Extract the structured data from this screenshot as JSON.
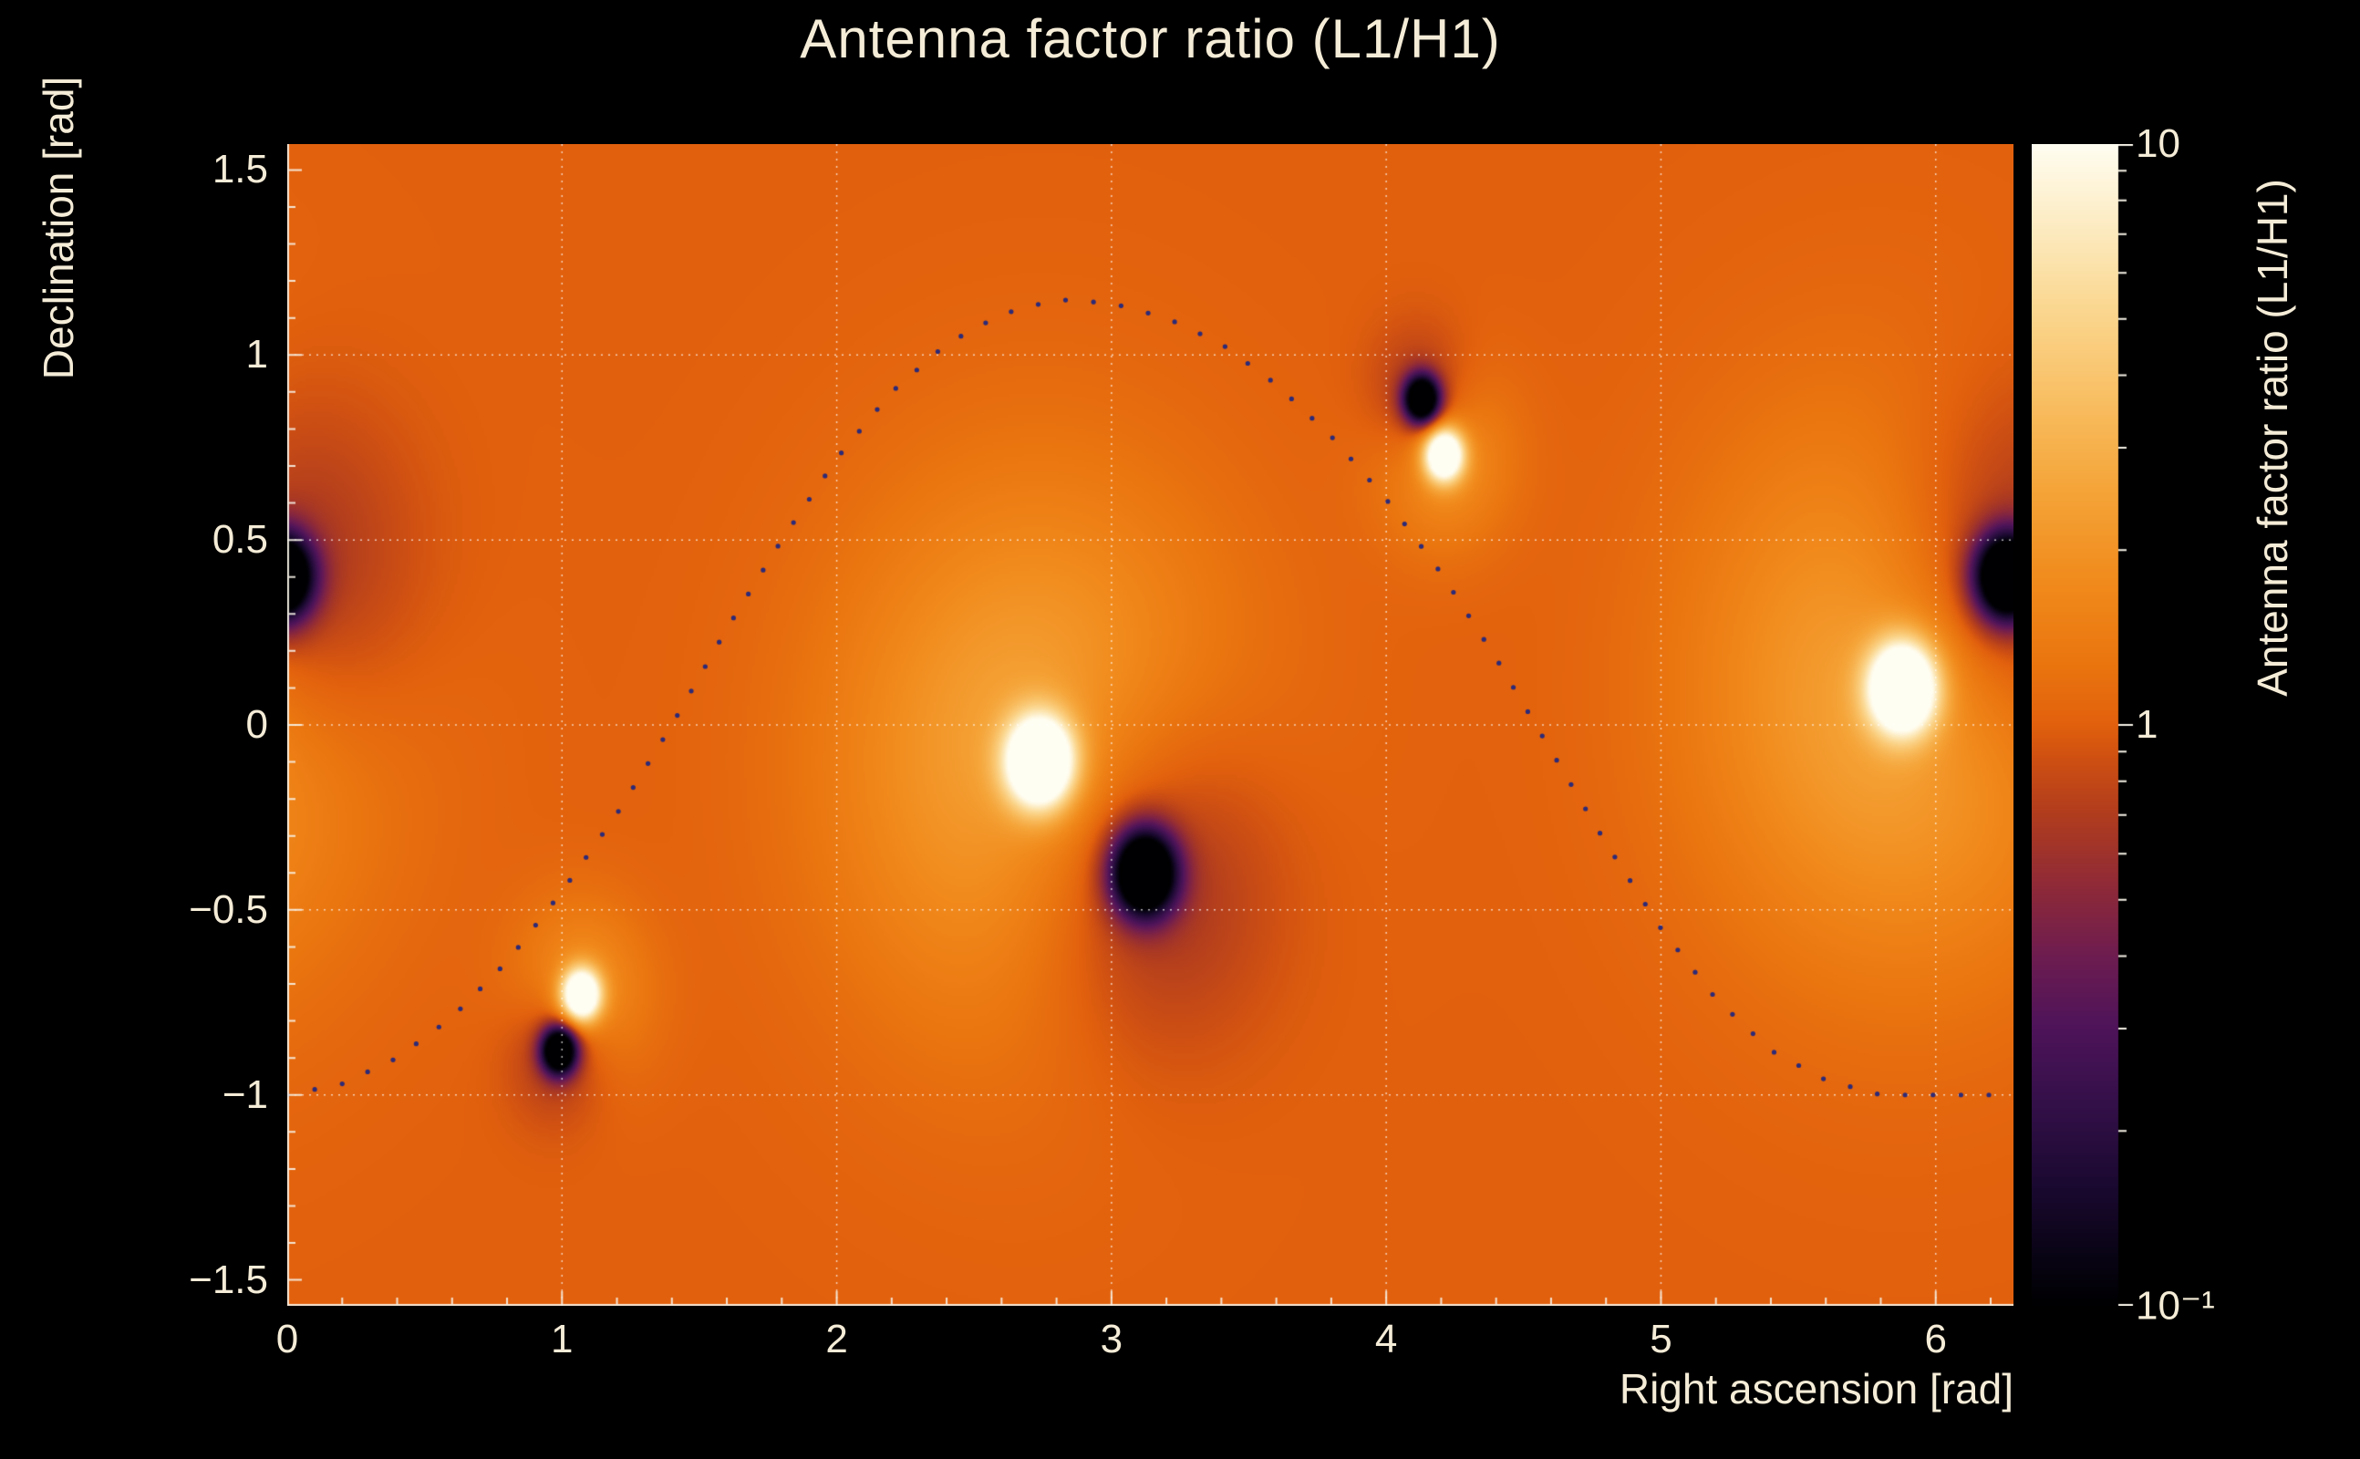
{
  "title": "Antenna factor ratio (L1/H1)",
  "style": {
    "background": "#000000",
    "text_color": "#f5ecd7",
    "tick_color": "#f7f3e8",
    "grid_color": "rgba(255,255,255,0.70)",
    "base_orange": "#e2610d",
    "track_dot_color": "#2d2a78"
  },
  "axes": {
    "x": {
      "title": "Right ascension [rad]",
      "range": [
        0,
        6.283
      ],
      "tick_values": [
        0,
        1,
        2,
        3,
        4,
        5,
        6
      ],
      "tick_labels": [
        "0",
        "1",
        "2",
        "3",
        "4",
        "5",
        "6"
      ],
      "grid_values": [
        1,
        2,
        3,
        4,
        5,
        6
      ],
      "minor_step": 0.2
    },
    "y": {
      "title": "Declination [rad]",
      "range": [
        -1.57,
        1.57
      ],
      "tick_values": [
        1.5,
        1,
        0.5,
        0,
        -0.5,
        -1,
        -1.5
      ],
      "tick_labels": [
        "1.5",
        "1",
        "0.5",
        "0",
        "−0.5",
        "−1",
        "−1.5"
      ],
      "grid_values": [
        -1,
        -0.5,
        0,
        0.5,
        1
      ],
      "minor_step": 0.1
    },
    "z": {
      "title": "Antenna factor ratio (L1/H1)",
      "scale": "log",
      "range": [
        0.1,
        10
      ],
      "tick_values": [
        10,
        1,
        0.1
      ],
      "tick_labels": [
        "10",
        "1",
        "10⁻¹"
      ],
      "minor_ticks": [
        9,
        8,
        7,
        6,
        5,
        4,
        3,
        2,
        0.9,
        0.8,
        0.7,
        0.6,
        0.5,
        0.4,
        0.3,
        0.2
      ]
    }
  },
  "chart_data": {
    "type": "heatmap",
    "title": "Antenna factor ratio (L1/H1)",
    "xlabel": "Right ascension [rad]",
    "ylabel": "Declination [rad]",
    "zlabel": "Antenna factor ratio (L1/H1)",
    "x_range": [
      0,
      6.283
    ],
    "y_range": [
      -1.57,
      1.57
    ],
    "z_scale": "log",
    "z_range": [
      0.1,
      10
    ],
    "background_ratio": 1.0,
    "period": 6.2832,
    "colormap": [
      [
        0.0,
        "#000002"
      ],
      [
        0.04,
        "#090414"
      ],
      [
        0.1,
        "#1a0930"
      ],
      [
        0.17,
        "#331048"
      ],
      [
        0.24,
        "#4f145a"
      ],
      [
        0.3,
        "#6e1d50"
      ],
      [
        0.36,
        "#8f2a38"
      ],
      [
        0.42,
        "#b03c1f"
      ],
      [
        0.47,
        "#cf5012"
      ],
      [
        0.5,
        "#e2610d"
      ],
      [
        0.55,
        "#ea750f"
      ],
      [
        0.62,
        "#f18a1c"
      ],
      [
        0.7,
        "#f5a438"
      ],
      [
        0.78,
        "#f9bf63"
      ],
      [
        0.86,
        "#fbd892"
      ],
      [
        0.93,
        "#fdecc3"
      ],
      [
        1.0,
        "#fffef2"
      ]
    ],
    "blobs": [
      {
        "name": "primary-maximum-a",
        "kind": "maximum",
        "ra": 2.74,
        "dec": -0.1,
        "peak_ratio": 10,
        "components": [
          {
            "amp": 1.7,
            "sigma": 0.085
          },
          {
            "amp": 0.45,
            "sigma": 0.5
          }
        ]
      },
      {
        "name": "primary-maximum-b",
        "kind": "maximum",
        "ra": 5.88,
        "dec": 0.1,
        "peak_ratio": 10,
        "components": [
          {
            "amp": 1.7,
            "sigma": 0.085
          },
          {
            "amp": 0.45,
            "sigma": 0.5
          }
        ]
      },
      {
        "name": "primary-minimum-a",
        "kind": "minimum",
        "ra": 3.12,
        "dec": -0.4,
        "peak_ratio": 0.1,
        "components": [
          {
            "amp": -1.8,
            "sigma": 0.08
          },
          {
            "amp": -0.4,
            "sigma": 0.33
          }
        ]
      },
      {
        "name": "primary-minimum-b",
        "kind": "minimum",
        "ra": 6.26,
        "dec": 0.4,
        "peak_ratio": 0.1,
        "components": [
          {
            "amp": -1.8,
            "sigma": 0.08
          },
          {
            "amp": -0.4,
            "sigma": 0.33
          }
        ]
      },
      {
        "name": "secondary-maximum-a",
        "kind": "maximum",
        "ra": 1.07,
        "dec": -0.73,
        "peak_ratio": 10,
        "components": [
          {
            "amp": 1.5,
            "sigma": 0.05
          },
          {
            "amp": 0.3,
            "sigma": 0.17
          }
        ]
      },
      {
        "name": "secondary-maximum-b",
        "kind": "maximum",
        "ra": 4.21,
        "dec": 0.73,
        "peak_ratio": 10,
        "components": [
          {
            "amp": 1.5,
            "sigma": 0.05
          },
          {
            "amp": 0.3,
            "sigma": 0.17
          }
        ]
      },
      {
        "name": "secondary-minimum-a",
        "kind": "minimum",
        "ra": 0.99,
        "dec": -0.88,
        "peak_ratio": 0.1,
        "components": [
          {
            "amp": -1.6,
            "sigma": 0.045
          },
          {
            "amp": -0.28,
            "sigma": 0.13
          }
        ]
      },
      {
        "name": "secondary-minimum-b",
        "kind": "minimum",
        "ra": 4.13,
        "dec": 0.88,
        "peak_ratio": 0.1,
        "components": [
          {
            "amp": -1.6,
            "sigma": 0.045
          },
          {
            "amp": -0.28,
            "sigma": 0.13
          }
        ]
      }
    ],
    "track": {
      "name": "dotted-declination-track",
      "color": "#2d2a78",
      "dot_radius": 2.6,
      "dot_spacing_px": 30,
      "points": [
        [
          0.0,
          -1.0
        ],
        [
          0.2,
          -0.97
        ],
        [
          0.4,
          -0.9
        ],
        [
          0.6,
          -0.79
        ],
        [
          0.8,
          -0.64
        ],
        [
          1.0,
          -0.45
        ],
        [
          1.2,
          -0.24
        ],
        [
          1.4,
          0.0
        ],
        [
          1.6,
          0.26
        ],
        [
          1.8,
          0.5
        ],
        [
          2.0,
          0.72
        ],
        [
          2.2,
          0.9
        ],
        [
          2.4,
          1.03
        ],
        [
          2.6,
          1.11
        ],
        [
          2.8,
          1.15
        ],
        [
          3.0,
          1.14
        ],
        [
          3.2,
          1.1
        ],
        [
          3.4,
          1.03
        ],
        [
          3.6,
          0.92
        ],
        [
          3.8,
          0.78
        ],
        [
          4.0,
          0.61
        ],
        [
          4.2,
          0.41
        ],
        [
          4.4,
          0.18
        ],
        [
          4.6,
          -0.07
        ],
        [
          4.8,
          -0.32
        ],
        [
          5.0,
          -0.55
        ],
        [
          5.2,
          -0.74
        ],
        [
          5.4,
          -0.88
        ],
        [
          5.6,
          -0.96
        ],
        [
          5.8,
          -1.0
        ],
        [
          6.0,
          -1.0
        ],
        [
          6.2,
          -1.0
        ],
        [
          6.28,
          -1.0
        ]
      ]
    }
  }
}
